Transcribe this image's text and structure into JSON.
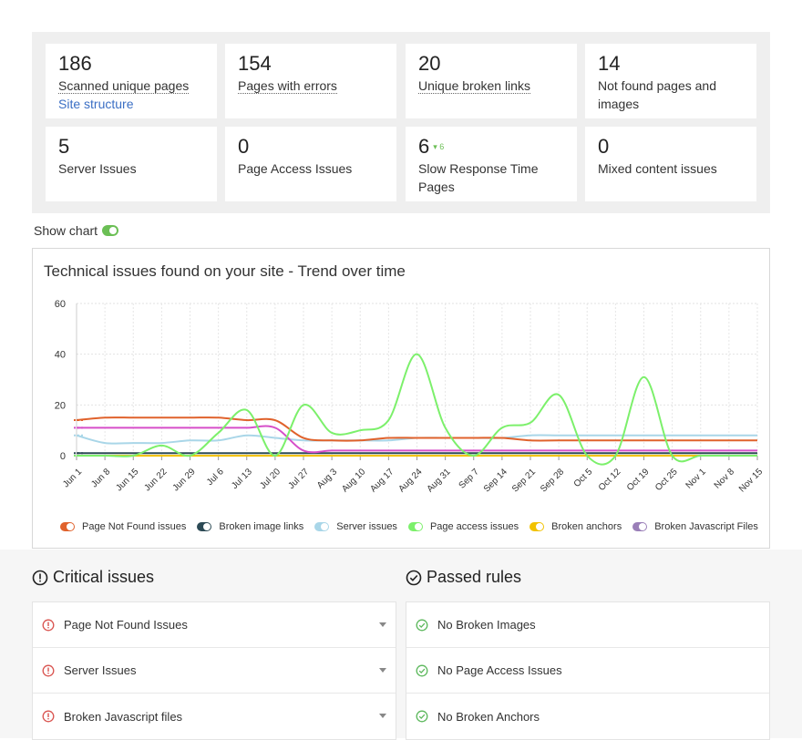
{
  "stats": [
    {
      "num": "186",
      "label": "Scanned unique pages",
      "link": "Site structure"
    },
    {
      "num": "154",
      "label": "Pages with errors"
    },
    {
      "num": "20",
      "label": "Unique broken links"
    },
    {
      "num": "14",
      "label": "Not found pages and images"
    },
    {
      "num": "5",
      "label": "Server Issues"
    },
    {
      "num": "0",
      "label": "Page Access Issues"
    },
    {
      "num": "6",
      "label": "Slow Response Time Pages",
      "trend": "6"
    },
    {
      "num": "0",
      "label": "Mixed content issues"
    }
  ],
  "show_chart": {
    "label": "Show chart"
  },
  "chart": {
    "title": "Technical issues found on your site - Trend over time"
  },
  "chart_data": {
    "type": "line",
    "x": [
      "Jun 1",
      "Jun 8",
      "Jun 15",
      "Jun 22",
      "Jun 29",
      "Jul 6",
      "Jul 13",
      "Jul 20",
      "Jul 27",
      "Aug 3",
      "Aug 10",
      "Aug 17",
      "Aug 24",
      "Aug 31",
      "Sep 7",
      "Sep 14",
      "Sep 21",
      "Sep 28",
      "Oct 5",
      "Oct 12",
      "Oct 19",
      "Oct 25",
      "Nov 1",
      "Nov 8",
      "Nov 15"
    ],
    "yticks": [
      0,
      20,
      40,
      60
    ],
    "ylim": [
      0,
      60
    ],
    "grid": true,
    "legend": "bottom",
    "series": [
      {
        "name": "Page Not Found issues",
        "color": "#e0622c",
        "values": [
          14,
          15,
          15,
          15,
          15,
          15,
          14,
          14,
          7,
          6,
          6,
          7,
          7,
          7,
          7,
          7,
          6,
          6,
          6,
          6,
          6,
          6,
          6,
          6,
          6
        ]
      },
      {
        "name": "Broken image links",
        "color": "#2c4a55",
        "values": [
          1,
          1,
          1,
          1,
          1,
          1,
          1,
          1,
          1,
          1,
          1,
          1,
          1,
          1,
          1,
          1,
          1,
          1,
          1,
          1,
          1,
          1,
          1,
          1,
          1
        ]
      },
      {
        "name": "Server issues",
        "color": "#a9d6e8",
        "values": [
          8,
          5,
          5,
          5,
          6,
          6,
          8,
          7,
          6,
          6,
          6,
          6,
          7,
          7,
          7,
          7,
          8,
          8,
          8,
          8,
          8,
          8,
          8,
          8,
          8
        ]
      },
      {
        "name": "Page access issues",
        "color": "#7cf06b",
        "values": [
          0,
          0,
          0,
          4,
          0,
          9,
          18,
          0,
          20,
          9,
          10,
          14,
          40,
          11,
          0,
          11,
          13,
          24,
          0,
          0,
          31,
          0,
          0,
          0,
          0
        ]
      },
      {
        "name": "Broken anchors",
        "color": "#f2c200",
        "values": [
          0,
          0,
          0,
          0,
          0,
          0,
          0,
          0,
          0,
          0,
          0,
          0,
          0,
          0,
          0,
          0,
          0,
          0,
          0,
          0,
          0,
          0,
          0,
          0,
          0
        ]
      },
      {
        "name": "Broken Javascript Files",
        "color": "#9a7fb8",
        "values": [
          11,
          11,
          11,
          11,
          11,
          11,
          11,
          11,
          2,
          2,
          2,
          2,
          2,
          2,
          2,
          2,
          2,
          2,
          2,
          2,
          2,
          2,
          2,
          2,
          2
        ]
      }
    ],
    "extra_series_colors": {
      "magenta": "#d64fc9"
    }
  },
  "critical": {
    "title": "Critical issues",
    "items": [
      "Page Not Found Issues",
      "Server Issues",
      "Broken Javascript files"
    ]
  },
  "passed": {
    "title": "Passed rules",
    "items": [
      "No Broken Images",
      "No Page Access Issues",
      "No Broken Anchors"
    ]
  }
}
